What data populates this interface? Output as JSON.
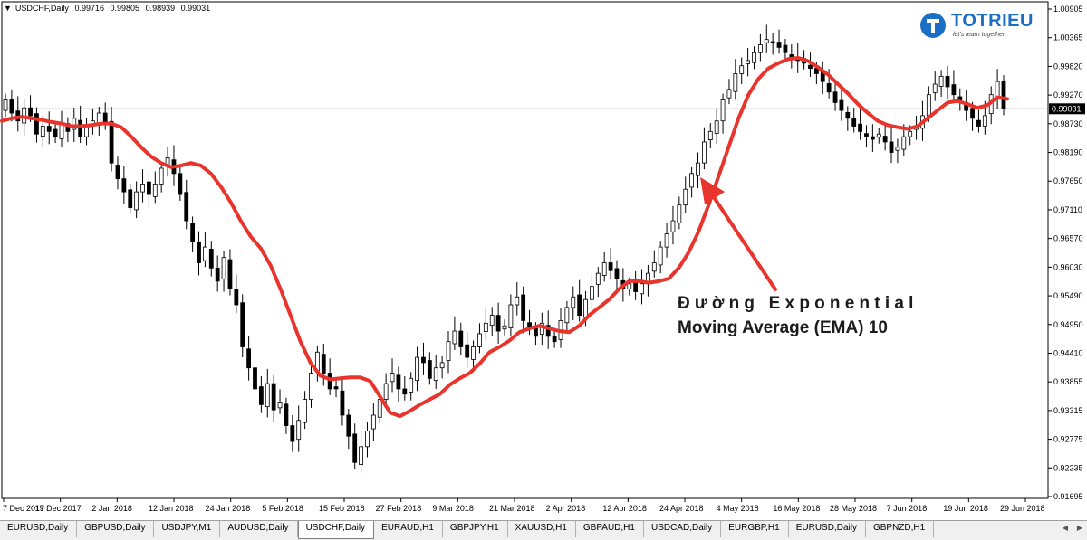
{
  "chart_header": {
    "symbol": "USDCHF,Daily",
    "open": "0.99716",
    "high": "0.99805",
    "low": "0.98939",
    "close": "0.99031"
  },
  "logo": {
    "text": "TOTRIEU",
    "tagline": "let's learn together"
  },
  "annotation": {
    "line1": "Đường Exponential",
    "line2": "Moving Average (EMA) 10"
  },
  "tabs": [
    {
      "label": "EURUSD,Daily",
      "active": false
    },
    {
      "label": "GBPUSD,Daily",
      "active": false
    },
    {
      "label": "USDJPY,M1",
      "active": false
    },
    {
      "label": "AUDUSD,Daily",
      "active": false
    },
    {
      "label": "USDCHF,Daily",
      "active": true
    },
    {
      "label": "EURAUD,H1",
      "active": false
    },
    {
      "label": "GBPJPY,H1",
      "active": false
    },
    {
      "label": "XAUUSD,H1",
      "active": false
    },
    {
      "label": "GBPAUD,H1",
      "active": false
    },
    {
      "label": "USDCAD,Daily",
      "active": false
    },
    {
      "label": "EURGBP,H1",
      "active": false
    },
    {
      "label": "EURUSD,Daily",
      "active": false
    },
    {
      "label": "GBPNZD,H1",
      "active": false
    }
  ],
  "colors": {
    "background": "#ffffff",
    "candle_stroke": "#000000",
    "bull_fill": "#ffffff",
    "bear_fill": "#000000",
    "ema": "#e8342c",
    "arrow": "#e8342c",
    "price_label_bg": "#000000",
    "price_label_text": "#ffffff"
  },
  "chart_data": {
    "type": "candlestick",
    "symbol": "USDCHF",
    "timeframe": "Daily",
    "ylim": [
      0.9165,
      1.0093
    ],
    "y_ticks": [
      "1.00905",
      "1.00365",
      "0.99820",
      "0.99270",
      "0.98730",
      "0.98190",
      "0.97650",
      "0.97110",
      "0.96570",
      "0.96030",
      "0.95490",
      "0.94950",
      "0.94410",
      "0.93855",
      "0.93315",
      "0.92775",
      "0.92235",
      "0.91695"
    ],
    "current_price": "0.99031",
    "x_ticks": [
      "7 Dec 2017",
      "19 Dec 2017",
      "2 Jan 2018",
      "12 Jan 2018",
      "24 Jan 2018",
      "5 Feb 2018",
      "15 Feb 2018",
      "27 Feb 2018",
      "9 Mar 2018",
      "21 Mar 2018",
      "2 Apr 2018",
      "12 Apr 2018",
      "24 Apr 2018",
      "4 May 2018",
      "16 May 2018",
      "28 May 2018",
      "7 Jun 2018",
      "19 Jun 2018",
      "29 Jun 2018"
    ],
    "closes": [
      0.992,
      0.9895,
      0.988,
      0.9905,
      0.989,
      0.9855,
      0.987,
      0.986,
      0.985,
      0.9875,
      0.986,
      0.9885,
      0.985,
      0.987,
      0.988,
      0.9895,
      0.9875,
      0.98,
      0.977,
      0.9745,
      0.9715,
      0.9745,
      0.976,
      0.974,
      0.976,
      0.979,
      0.981,
      0.978,
      0.974,
      0.969,
      0.965,
      0.961,
      0.964,
      0.96,
      0.9575,
      0.962,
      0.956,
      0.953,
      0.945,
      0.941,
      0.937,
      0.934,
      0.938,
      0.933,
      0.9345,
      0.93,
      0.927,
      0.931,
      0.935,
      0.94,
      0.944,
      0.94,
      0.937,
      0.937,
      0.932,
      0.928,
      0.923,
      0.926,
      0.929,
      0.932,
      0.935,
      0.938,
      0.94,
      0.937,
      0.936,
      0.939,
      0.943,
      0.942,
      0.939,
      0.941,
      0.942,
      0.946,
      0.948,
      0.945,
      0.943,
      0.945,
      0.9475,
      0.9495,
      0.951,
      0.948,
      0.949,
      0.953,
      0.9545,
      0.95,
      0.9485,
      0.947,
      0.9495,
      0.947,
      0.946,
      0.95,
      0.9525,
      0.9545,
      0.951,
      0.954,
      0.9565,
      0.959,
      0.961,
      0.9595,
      0.958,
      0.956,
      0.957,
      0.9555,
      0.957,
      0.959,
      0.961,
      0.964,
      0.9665,
      0.969,
      0.972,
      0.975,
      0.978,
      0.98,
      0.984,
      0.986,
      0.988,
      0.992,
      0.994,
      0.997,
      0.9985,
      0.9995,
      1.001,
      1.0025,
      1.0035,
      1.003,
      1.002,
      1.001,
      1.0,
      0.9995,
      0.999,
      0.998,
      0.997,
      0.9955,
      0.9935,
      0.9915,
      0.99,
      0.9885,
      0.987,
      0.986,
      0.985,
      0.9845,
      0.9855,
      0.984,
      0.982,
      0.983,
      0.985,
      0.986,
      0.987,
      0.989,
      0.993,
      0.995,
      0.9965,
      0.9945,
      0.993,
      0.9915,
      0.99,
      0.9885,
      0.987,
      0.989,
      0.993,
      0.9955,
      0.9903
    ],
    "series": [
      {
        "name": "EMA 10",
        "type": "line",
        "values": [
          0.988,
          0.9885,
          0.9888,
          0.9885,
          0.9882,
          0.9878,
          0.9875,
          0.987,
          0.987,
          0.9872,
          0.9875,
          0.9875,
          0.9868,
          0.985,
          0.983,
          0.9812,
          0.98,
          0.9792,
          0.9795,
          0.98,
          0.9795,
          0.978,
          0.9755,
          0.9725,
          0.969,
          0.966,
          0.9638,
          0.9605,
          0.956,
          0.951,
          0.946,
          0.942,
          0.9395,
          0.9388,
          0.939,
          0.9392,
          0.9392,
          0.9385,
          0.9355,
          0.9325,
          0.9318,
          0.9328,
          0.934,
          0.935,
          0.936,
          0.9378,
          0.939,
          0.94,
          0.9418,
          0.944,
          0.945,
          0.9462,
          0.9478,
          0.9485,
          0.949,
          0.9485,
          0.948,
          0.9478,
          0.949,
          0.951,
          0.9525,
          0.954,
          0.956,
          0.9575,
          0.9575,
          0.9572,
          0.9575,
          0.958,
          0.96,
          0.963,
          0.967,
          0.972,
          0.9775,
          0.983,
          0.9885,
          0.993,
          0.996,
          0.998,
          0.999,
          0.9998,
          1.0,
          0.9994,
          0.9982,
          0.9968,
          0.995,
          0.9932,
          0.9912,
          0.9895,
          0.988,
          0.9872,
          0.9868,
          0.9865,
          0.987,
          0.9885,
          0.99,
          0.9915,
          0.9918,
          0.9912,
          0.9905,
          0.991,
          0.9925,
          0.9922
        ]
      }
    ]
  }
}
